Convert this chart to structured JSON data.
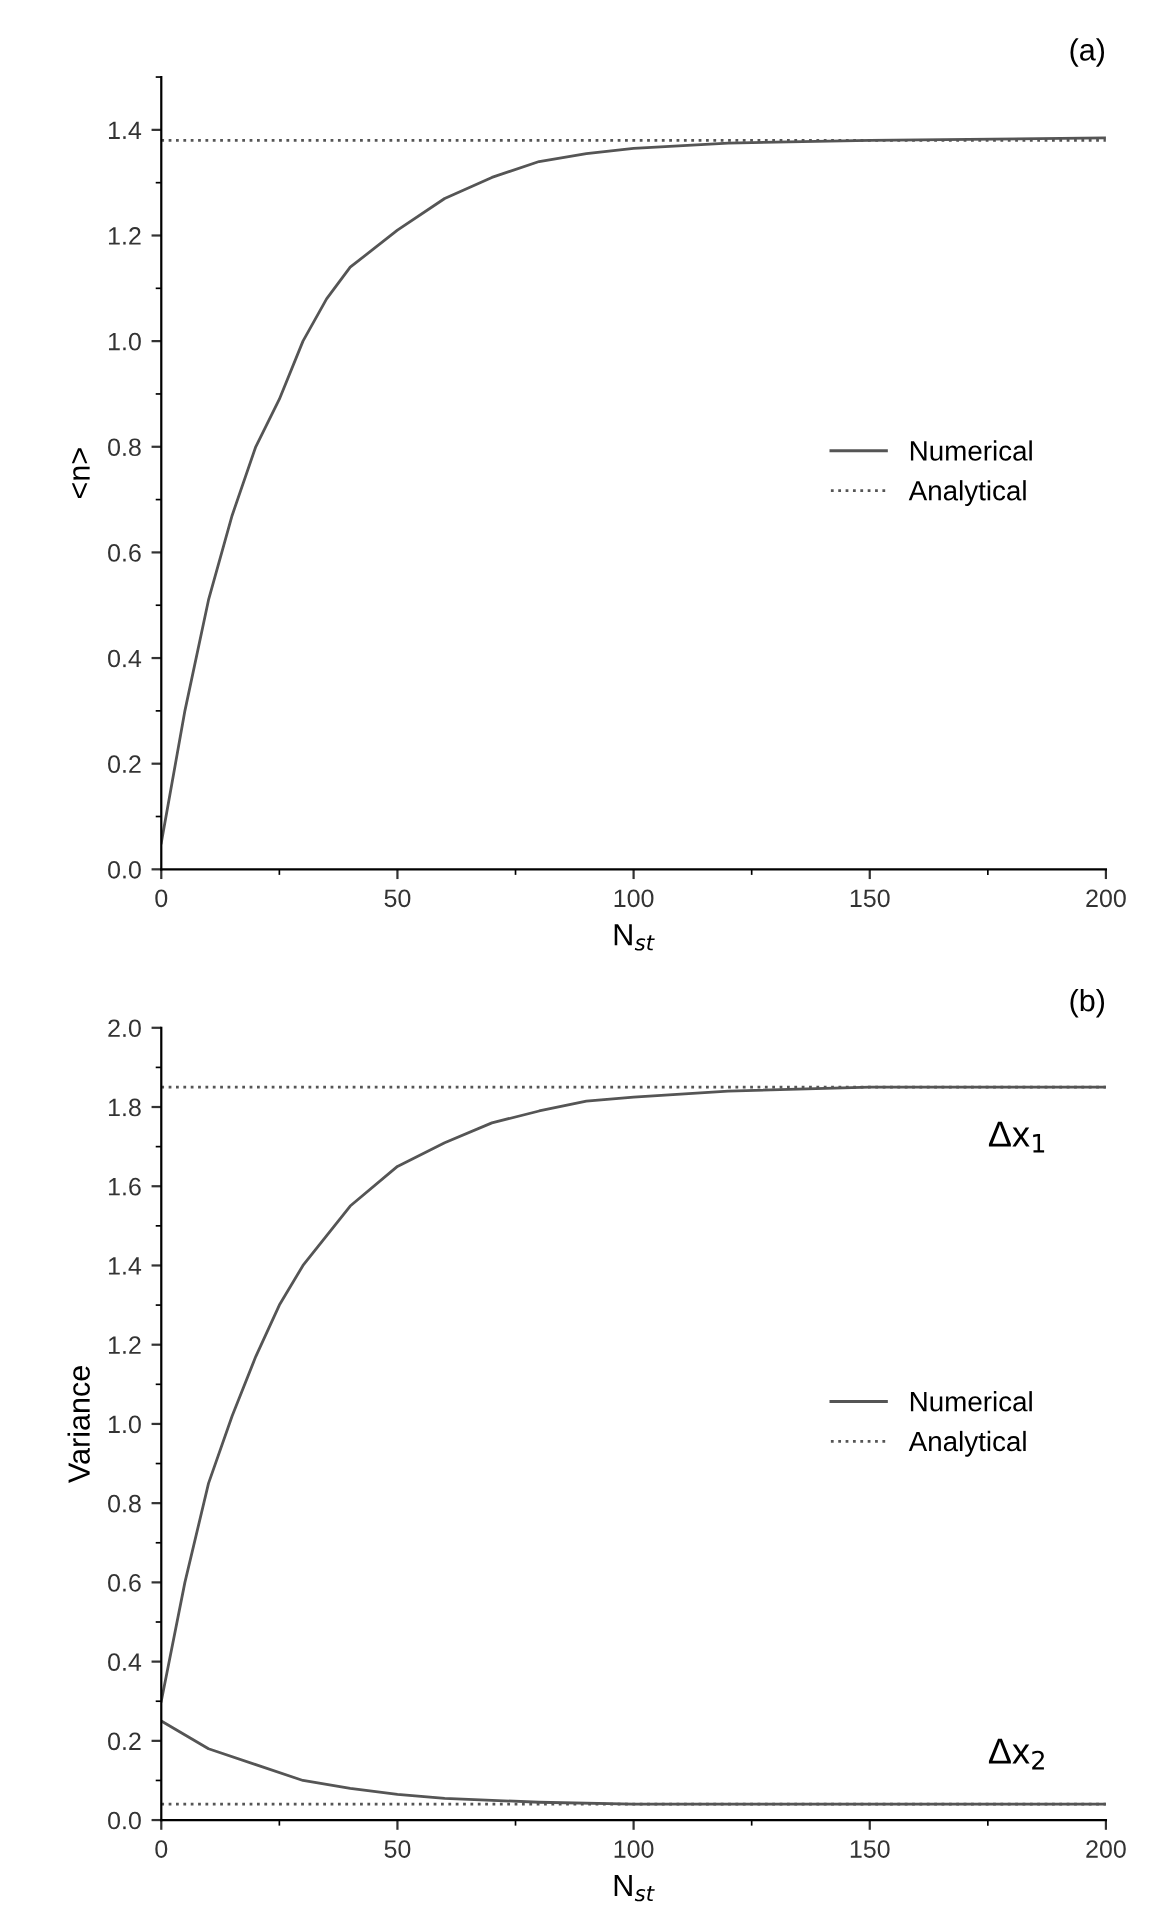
{
  "chart_data": [
    {
      "type": "line",
      "title": "(a)",
      "xlabel": "N$_{st}$",
      "ylabel": "<n>",
      "xlim": [
        0,
        200
      ],
      "xticks": [
        0,
        50,
        100,
        150,
        200
      ],
      "ylim": [
        0,
        1.5
      ],
      "yticks": [
        {
          "value": 0,
          "label": "0.0"
        },
        0.2,
        0.4,
        0.6,
        0.8,
        {
          "value": 1,
          "label": "1.0"
        },
        1.2,
        1.4
      ],
      "legend": "right",
      "grid": false,
      "series": [
        {
          "name": "Numerical",
          "color": "#555555",
          "line_style": "solid",
          "x": [
            0,
            5,
            10,
            15,
            20,
            25,
            30,
            35,
            40,
            50,
            60,
            70,
            80,
            90,
            100,
            120,
            150,
            200
          ],
          "values": [
            0.05,
            0.3,
            0.51,
            0.67,
            0.8,
            0.89,
            1.0,
            1.08,
            1.14,
            1.21,
            1.27,
            1.31,
            1.34,
            1.355,
            1.365,
            1.375,
            1.38,
            1.385
          ]
        },
        {
          "name": "Analytical",
          "color": "#555555",
          "line_style": "dotted",
          "x": [
            0,
            200
          ],
          "values": [
            1.38,
            1.38
          ]
        }
      ]
    },
    {
      "type": "line",
      "title": "(b)",
      "xlabel": "N$_{st}$",
      "ylabel": "Variance",
      "xlim": [
        0,
        200
      ],
      "xticks": [
        0,
        50,
        100,
        150,
        200
      ],
      "ylim": [
        0,
        2.0
      ],
      "yticks": [
        {
          "value": 0,
          "label": "0.0"
        },
        0.2,
        0.4,
        0.6,
        0.8,
        {
          "value": 1,
          "label": "1.0"
        },
        1.2,
        1.4,
        1.6,
        1.8,
        {
          "value": 2,
          "label": "2.0"
        }
      ],
      "legend": "right",
      "grid": false,
      "annotations": [
        {
          "text": "Δx$_{1}$",
          "x": 175,
          "y": 1.85
        },
        {
          "text": "Δx$_{2}$",
          "x": 175,
          "y": 0.04
        }
      ],
      "series": [
        {
          "name": "Numerical",
          "color": "#555555",
          "line_style": "solid",
          "x": [
            0,
            5,
            10,
            15,
            20,
            25,
            30,
            40,
            50,
            60,
            70,
            80,
            90,
            100,
            120,
            150,
            200
          ],
          "values": [
            0.3,
            0.6,
            0.85,
            1.02,
            1.17,
            1.3,
            1.4,
            1.55,
            1.65,
            1.71,
            1.76,
            1.79,
            1.815,
            1.825,
            1.84,
            1.85,
            1.85
          ]
        },
        {
          "color": "#555555",
          "line_style": "solid",
          "x": [
            0,
            10,
            20,
            30,
            40,
            50,
            60,
            80,
            100,
            200
          ],
          "values": [
            0.25,
            0.18,
            0.14,
            0.1,
            0.08,
            0.065,
            0.055,
            0.045,
            0.04,
            0.04
          ]
        },
        {
          "name": "Analytical",
          "color": "#555555",
          "line_style": "dotted",
          "x": [
            0,
            200
          ],
          "values": [
            1.85,
            1.85
          ]
        },
        {
          "color": "#555555",
          "line_style": "dotted",
          "x": [
            0,
            200
          ],
          "values": [
            0.04,
            0.04
          ]
        }
      ]
    }
  ]
}
